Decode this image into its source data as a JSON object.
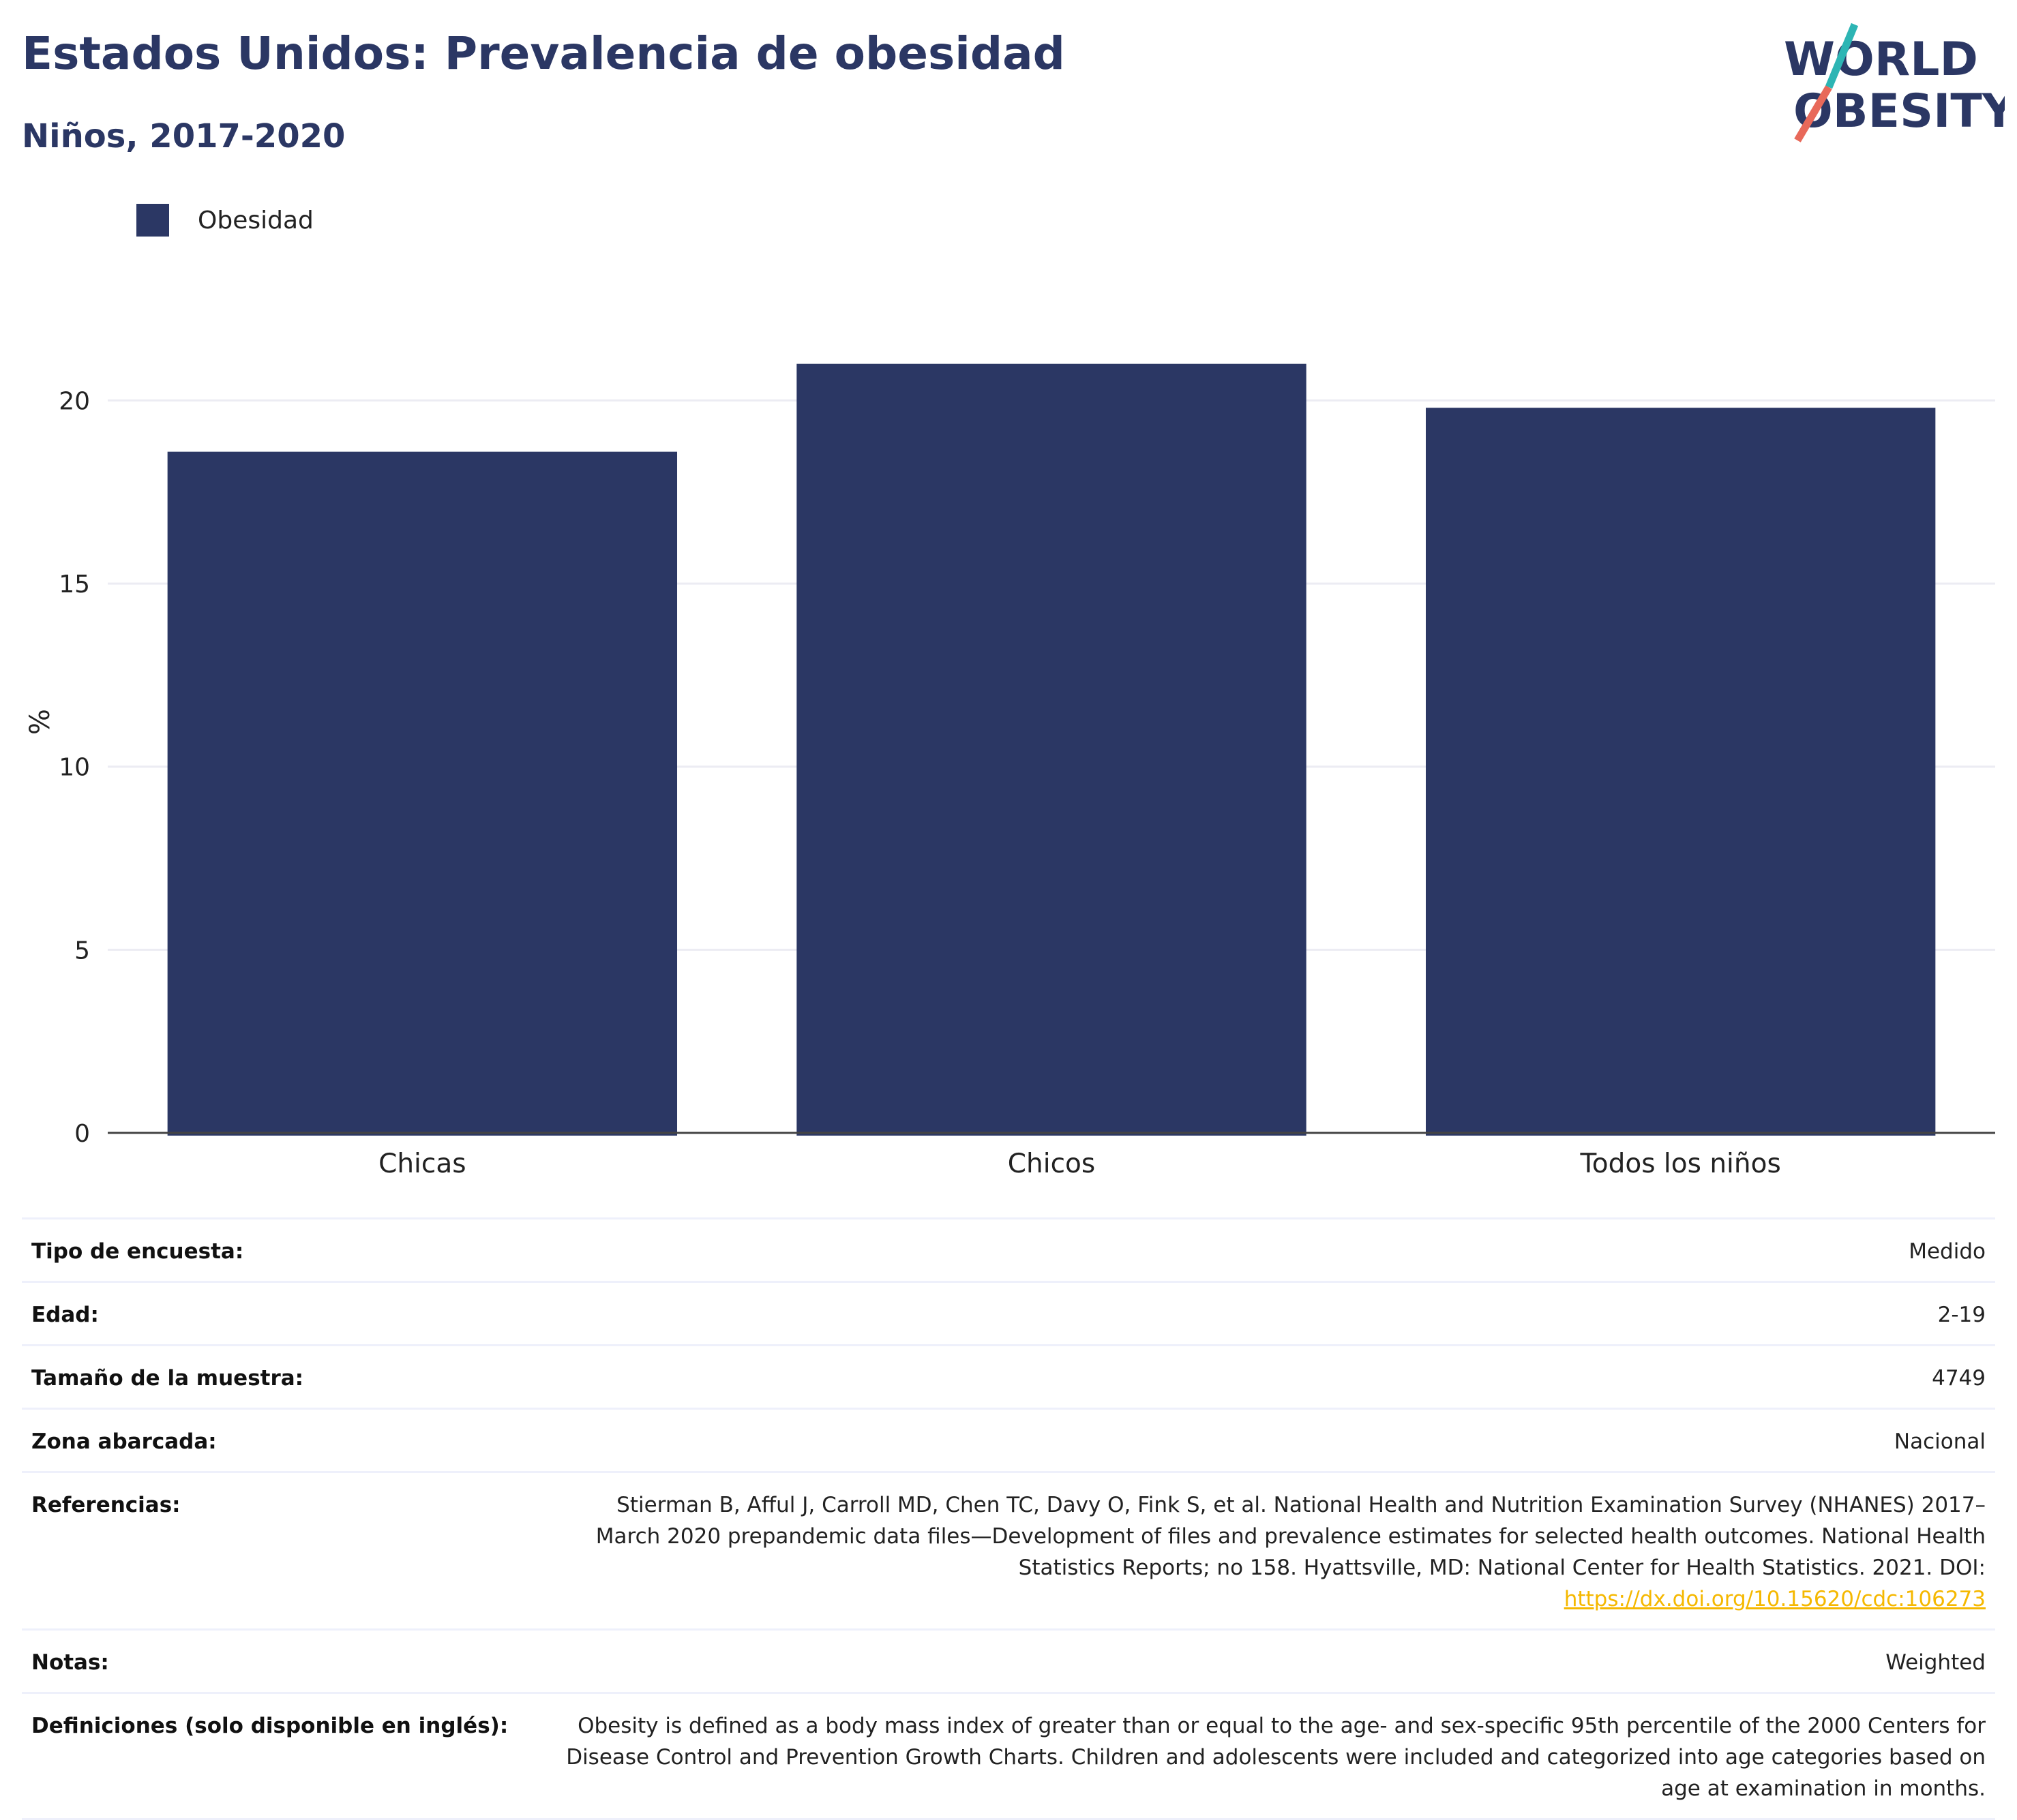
{
  "header": {
    "title": "Estados Unidos: Prevalencia de obesidad",
    "subtitle": "Niños, 2017-2020"
  },
  "logo": {
    "line1": "WORLD",
    "line2": "OBESITY"
  },
  "legend": {
    "label": "Obesidad"
  },
  "chart_data": {
    "type": "bar",
    "categories": [
      "Chicas",
      "Chicos",
      "Todos los niños"
    ],
    "series": [
      {
        "name": "Obesidad",
        "values": [
          18.6,
          21.0,
          19.8
        ]
      }
    ],
    "ylabel": "%",
    "xlabel": "",
    "ylim": [
      0,
      22
    ],
    "yticks": [
      0,
      5,
      10,
      15,
      20
    ],
    "grid": true,
    "legend_position": "top-left",
    "bar_color": "#2b3764"
  },
  "meta": [
    {
      "key": "Tipo de encuesta:",
      "value": "Medido"
    },
    {
      "key": "Edad:",
      "value": "2-19"
    },
    {
      "key": "Tamaño de la muestra:",
      "value": "4749"
    },
    {
      "key": "Zona abarcada:",
      "value": "Nacional"
    },
    {
      "key": "Referencias:",
      "value": "Stierman B, Afful J, Carroll MD, Chen TC, Davy O, Fink S, et al. National Health and Nutrition Examination Survey (NHANES) 2017–March 2020 prepandemic data files—Development of files and prevalence estimates for selected health outcomes. National Health Statistics Reports; no 158. Hyattsville, MD: National Center for Health Statistics. 2021. DOI:",
      "link": "https://dx.doi.org/10.15620/cdc:106273"
    },
    {
      "key": "Notas:",
      "value": "Weighted"
    },
    {
      "key": "Definiciones (solo disponible en inglés):",
      "value": "Obesity is defined as a body mass index of greater than or equal to the age- and sex-specific 95th percentile of the 2000 Centers for Disease Control and Prevention Growth Charts. Children and adolescents were included and categorized into age categories based on age at examination in months."
    }
  ],
  "colors": {
    "accent": "#2b3764",
    "teal": "#2db5b4",
    "coral": "#e8695a",
    "link": "#f5b800"
  }
}
